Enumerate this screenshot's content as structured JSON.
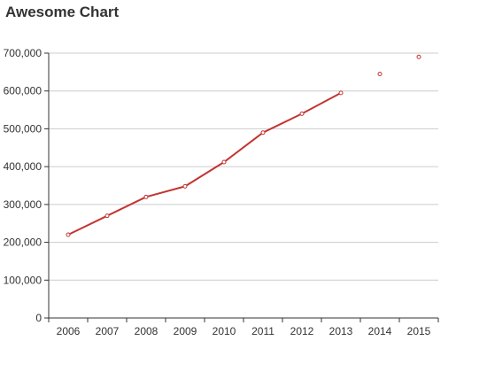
{
  "chart_data": {
    "type": "line",
    "title": "Awesome Chart",
    "xlabel": "",
    "ylabel": "",
    "categories": [
      "2006",
      "2007",
      "2008",
      "2009",
      "2010",
      "2011",
      "2012",
      "2013",
      "2014",
      "2015"
    ],
    "series": [
      {
        "values": [
          220000,
          270000,
          320000,
          348000,
          412000,
          490000,
          540000,
          595000,
          645000,
          690000
        ],
        "line_until_index": 7,
        "color": "#c23531"
      }
    ],
    "ylim": [
      0,
      700000
    ],
    "yticks": [
      0,
      100000,
      200000,
      300000,
      400000,
      500000,
      600000,
      700000
    ],
    "ytick_labels": [
      "0",
      "100,000",
      "200,000",
      "300,000",
      "400,000",
      "500,000",
      "600,000",
      "700,000"
    ],
    "grid": true,
    "legend": "none"
  }
}
